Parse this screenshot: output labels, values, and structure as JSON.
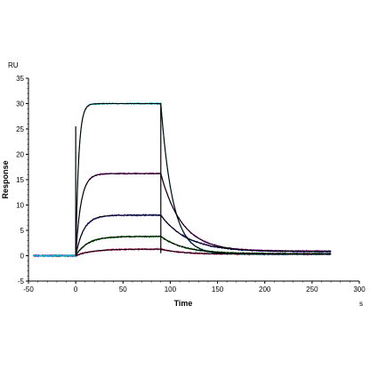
{
  "chart_data": {
    "type": "line",
    "xlabel": "Time",
    "ylabel": "Response",
    "x_unit": "s",
    "y_unit": "RU",
    "xlim": [
      -50,
      300
    ],
    "ylim": [
      -5,
      35
    ],
    "xticks": [
      -50,
      0,
      50,
      100,
      150,
      200,
      250,
      300
    ],
    "yticks": [
      -5,
      0,
      5,
      10,
      15,
      20,
      25,
      30,
      35
    ],
    "grid": false,
    "legend": "none",
    "association_start": 0,
    "dissociation_start": 90,
    "end_time": 270,
    "series": [
      {
        "color": "#e0106a",
        "plateau": 1.3,
        "residual": 0.3,
        "ka": 0.06,
        "kd": 0.045
      },
      {
        "color": "#008000",
        "plateau": 3.8,
        "residual": 0.4,
        "ka": 0.08,
        "kd": 0.04
      },
      {
        "color": "#2020d0",
        "plateau": 8.0,
        "residual": 0.8,
        "ka": 0.12,
        "kd": 0.035
      },
      {
        "color": "#c020c0",
        "plateau": 16.2,
        "residual": 0.9,
        "ka": 0.18,
        "kd": 0.045
      },
      {
        "color": "#00b8c8",
        "plateau": 30.0,
        "residual": 0.3,
        "ka": 0.32,
        "kd": 0.08
      }
    ],
    "fit_color": "#000000"
  }
}
